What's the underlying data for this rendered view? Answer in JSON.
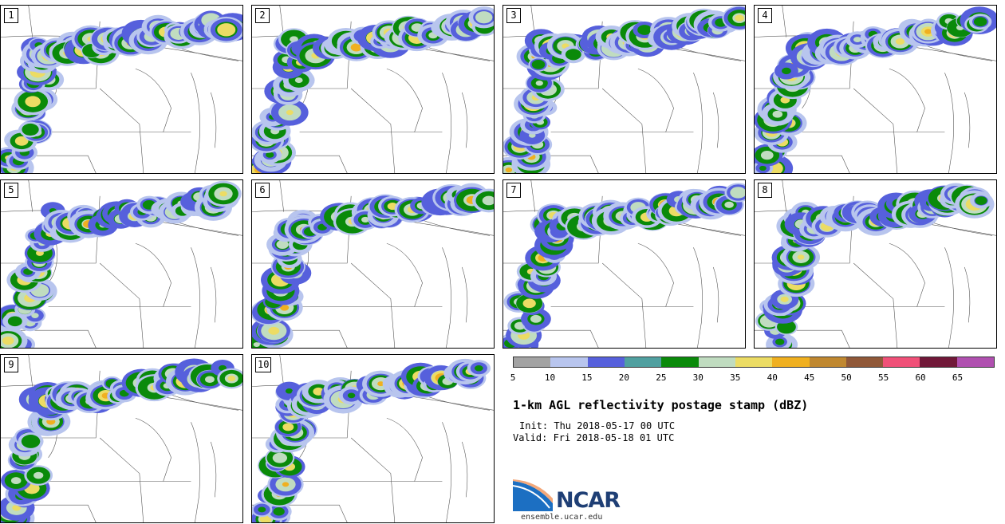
{
  "panels": [
    {
      "label": "1"
    },
    {
      "label": "2"
    },
    {
      "label": "3"
    },
    {
      "label": "4"
    },
    {
      "label": "5"
    },
    {
      "label": "6"
    },
    {
      "label": "7"
    },
    {
      "label": "8"
    },
    {
      "label": "9"
    },
    {
      "label": "10"
    }
  ],
  "colorbar": {
    "colors": [
      "#a3a3a3",
      "#b8c5ee",
      "#5660dc",
      "#50a0a0",
      "#0a8a0a",
      "#c0dcc0",
      "#ecdc64",
      "#f0b020",
      "#c08830",
      "#905838",
      "#f05078",
      "#701838",
      "#b050b0"
    ],
    "ticks": [
      "5",
      "10",
      "15",
      "20",
      "25",
      "30",
      "35",
      "40",
      "45",
      "50",
      "55",
      "60",
      "65"
    ]
  },
  "title": "1-km AGL reflectivity postage stamp (dBZ)",
  "init": "Init: Thu 2018-05-17 00 UTC",
  "valid": "Valid: Fri 2018-05-18 01 UTC",
  "logo": {
    "name": "NCAR",
    "url": "ensemble.ucar.edu"
  }
}
